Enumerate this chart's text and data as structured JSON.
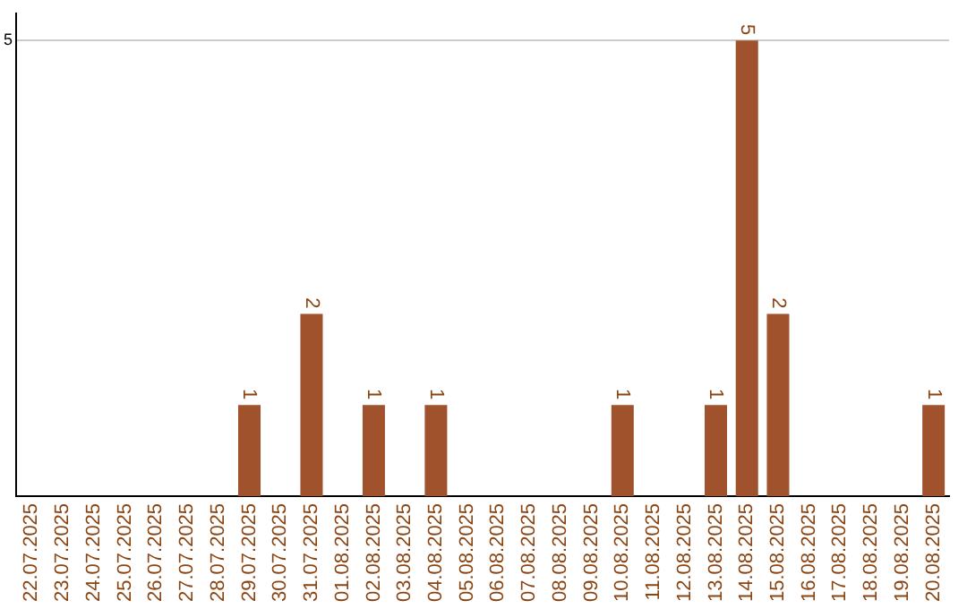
{
  "chart_data": {
    "type": "bar",
    "categories": [
      "22.07.2025",
      "23.07.2025",
      "24.07.2025",
      "25.07.2025",
      "26.07.2025",
      "27.07.2025",
      "28.07.2025",
      "29.07.2025",
      "30.07.2025",
      "31.07.2025",
      "01.08.2025",
      "02.08.2025",
      "03.08.2025",
      "04.08.2025",
      "05.08.2025",
      "06.08.2025",
      "07.08.2025",
      "08.08.2025",
      "09.08.2025",
      "10.08.2025",
      "11.08.2025",
      "12.08.2025",
      "13.08.2025",
      "14.08.2025",
      "15.08.2025",
      "16.08.2025",
      "17.08.2025",
      "18.08.2025",
      "19.08.2025",
      "20.08.2025"
    ],
    "values": [
      0,
      0,
      0,
      0,
      0,
      0,
      0,
      1,
      0,
      2,
      0,
      1,
      0,
      1,
      0,
      0,
      0,
      0,
      0,
      1,
      0,
      0,
      1,
      5,
      2,
      0,
      0,
      0,
      0,
      1
    ],
    "value_labels": [
      null,
      null,
      null,
      null,
      null,
      null,
      null,
      "1",
      null,
      "2",
      null,
      "1",
      null,
      "1",
      null,
      null,
      null,
      null,
      null,
      "1",
      null,
      null,
      "1",
      "5",
      "2",
      null,
      null,
      null,
      null,
      "1"
    ],
    "color": "#a0522d",
    "ylim": [
      0,
      5.3
    ],
    "yticks": [
      5
    ],
    "grid": "y",
    "legend": false
  }
}
